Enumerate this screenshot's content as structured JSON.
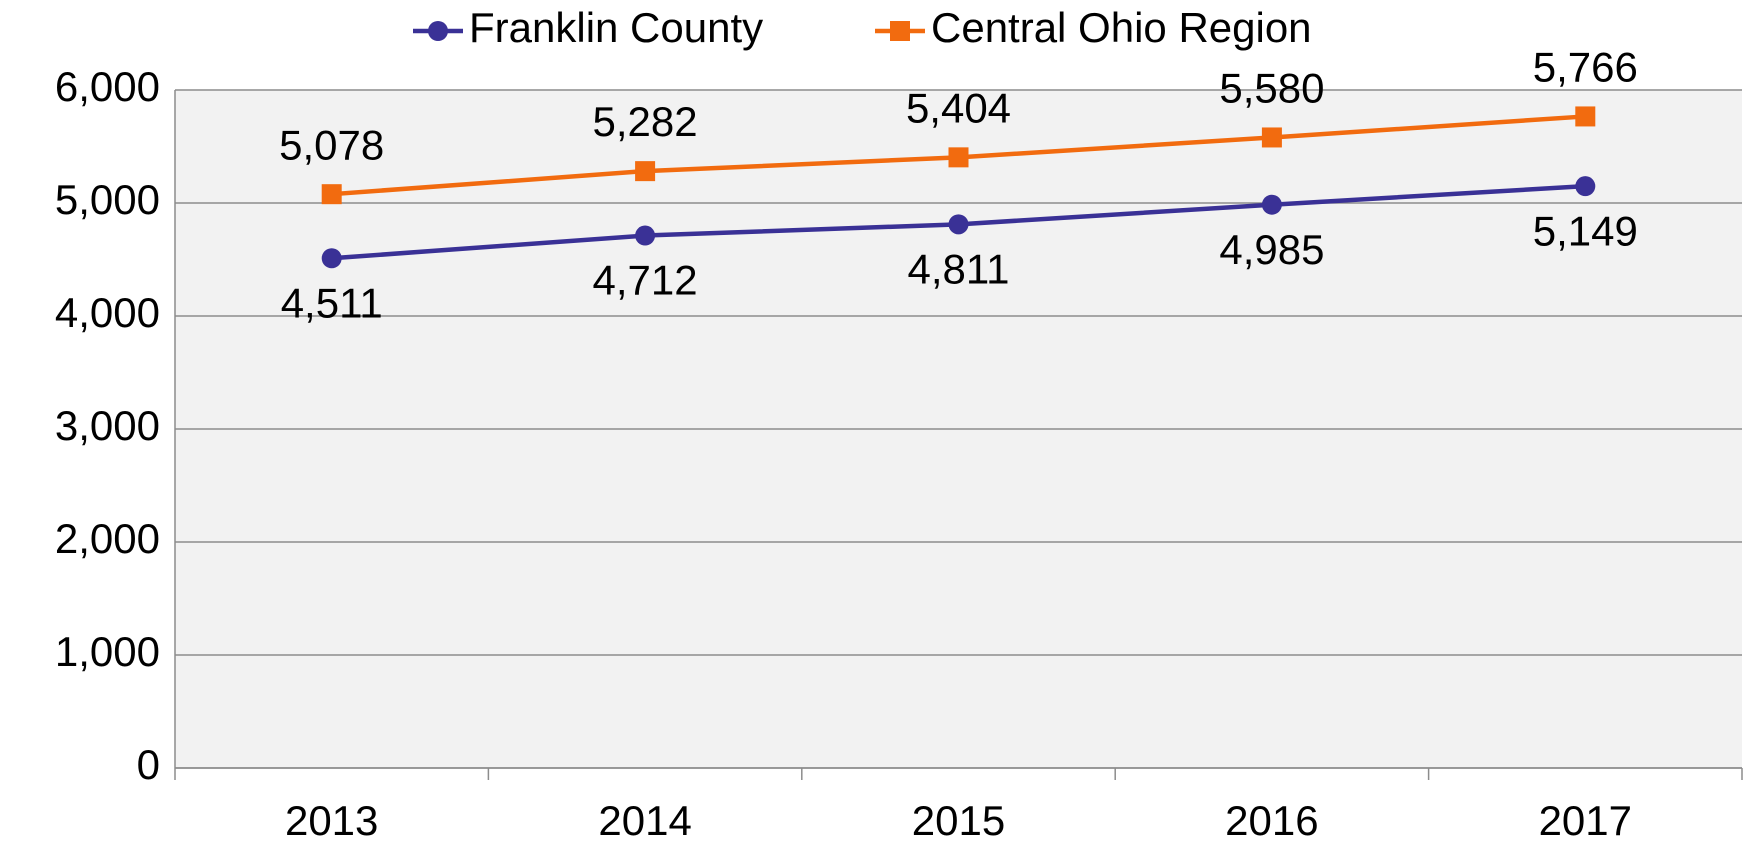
{
  "chart_data": {
    "type": "line",
    "categories": [
      "2013",
      "2014",
      "2015",
      "2016",
      "2017"
    ],
    "series": [
      {
        "name": "Franklin County",
        "color": "#3a3196",
        "marker": "circle",
        "values": [
          4511,
          4712,
          4811,
          4985,
          5149
        ],
        "value_labels": [
          "4,511",
          "4,712",
          "4,811",
          "4,985",
          "5,149"
        ]
      },
      {
        "name": "Central Ohio Region",
        "color": "#f26b0f",
        "marker": "square",
        "values": [
          5078,
          5282,
          5404,
          5580,
          5766
        ],
        "value_labels": [
          "5,078",
          "5,282",
          "5,404",
          "5,580",
          "5,766"
        ]
      }
    ],
    "ylim": [
      0,
      6000
    ],
    "yticks": [
      0,
      {
        "value": 1000,
        "label": "1,000"
      },
      {
        "value": 2000,
        "label": "2,000"
      },
      {
        "value": 3000,
        "label": "3,000"
      },
      {
        "value": 4000,
        "label": "4,000"
      },
      {
        "value": 5000,
        "label": "5,000"
      },
      {
        "value": 6000,
        "label": "6,000"
      }
    ],
    "grid": true,
    "legend": "top"
  }
}
